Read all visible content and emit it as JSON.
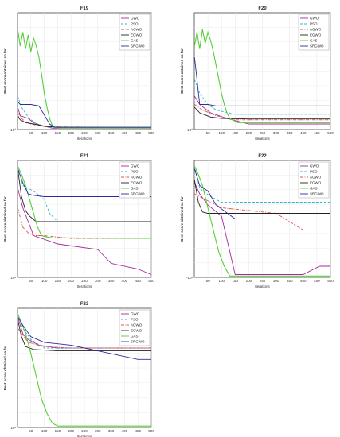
{
  "figure": {
    "panels": [
      "F19",
      "F20",
      "F21",
      "F22",
      "F23"
    ]
  },
  "chart_data": [
    {
      "type": "line",
      "title": "F19",
      "xlabel": "Iterations",
      "ylabel": "Best score obtained so far",
      "yscale": "log",
      "xlim": [
        0,
        500
      ],
      "xticks": [
        50,
        100,
        150,
        200,
        250,
        300,
        350,
        400,
        450,
        500
      ],
      "ytick_labels": [
        "-10°"
      ],
      "grid": true,
      "legend_position": "top-right",
      "series": [
        {
          "name": "GWO",
          "color": "#a52aa0",
          "style": "solid",
          "x": [
            1,
            10,
            40,
            60,
            90,
            130,
            500
          ],
          "y": [
            0.8,
            0.5,
            0.4,
            0.25,
            0.15,
            0.05,
            0.05
          ]
        },
        {
          "name": "PSO",
          "color": "#2fb8c8",
          "style": "dashed",
          "x": [
            1,
            15,
            40,
            70,
            120,
            500
          ],
          "y": [
            1.2,
            0.8,
            0.45,
            0.2,
            0.08,
            0.06
          ]
        },
        {
          "name": "AGWO",
          "color": "#e05252",
          "style": "dashdot",
          "x": [
            1,
            20,
            50,
            100,
            500
          ],
          "y": [
            0.6,
            0.35,
            0.2,
            0.1,
            0.07
          ]
        },
        {
          "name": "EGWO",
          "color": "#222222",
          "style": "solid",
          "x": [
            1,
            10,
            30,
            60,
            100,
            150,
            500
          ],
          "y": [
            0.5,
            0.35,
            0.25,
            0.2,
            0.12,
            0.08,
            0.08
          ]
        },
        {
          "name": "GAS",
          "color": "#55d036",
          "style": "solid",
          "x": [
            1,
            10,
            20,
            30,
            40,
            50,
            60,
            70,
            80,
            90,
            100,
            110,
            120,
            130,
            140,
            160,
            500
          ],
          "y": [
            3.6,
            3.0,
            3.5,
            2.9,
            3.4,
            2.8,
            3.3,
            3.0,
            2.6,
            2.0,
            1.3,
            0.8,
            0.4,
            0.15,
            0.08,
            0.06,
            0.06
          ]
        },
        {
          "name": "SRGWO",
          "color": "#2c2ca0",
          "style": "solid",
          "x": [
            1,
            10,
            50,
            80,
            120,
            140,
            500
          ],
          "y": [
            1.0,
            0.9,
            0.9,
            0.85,
            0.2,
            0.08,
            0.08
          ]
        }
      ]
    },
    {
      "type": "line",
      "title": "F20",
      "xlabel": "Iterations",
      "ylabel": "Best score obtained so far",
      "yscale": "log",
      "xlim": [
        0,
        500
      ],
      "xticks": [
        50,
        100,
        150,
        200,
        250,
        300,
        350,
        400,
        450,
        500
      ],
      "ytick_labels": [
        "-10°"
      ],
      "grid": true,
      "legend_position": "top-right",
      "series": [
        {
          "name": "GWO",
          "color": "#a52aa0",
          "style": "solid",
          "x": [
            1,
            20,
            60,
            120,
            200,
            500
          ],
          "y": [
            1.2,
            0.9,
            0.6,
            0.4,
            0.2,
            0.2
          ]
        },
        {
          "name": "PSO",
          "color": "#2fb8c8",
          "style": "dashed",
          "x": [
            1,
            20,
            50,
            80,
            150,
            500
          ],
          "y": [
            1.8,
            1.3,
            0.9,
            0.7,
            0.55,
            0.55
          ]
        },
        {
          "name": "AGWO",
          "color": "#e05252",
          "style": "dashdot",
          "x": [
            1,
            30,
            80,
            150,
            500
          ],
          "y": [
            0.9,
            0.7,
            0.5,
            0.35,
            0.35
          ]
        },
        {
          "name": "EGWO",
          "color": "#222222",
          "style": "solid",
          "x": [
            1,
            20,
            60,
            100,
            200,
            500
          ],
          "y": [
            0.8,
            0.6,
            0.45,
            0.4,
            0.38,
            0.38
          ]
        },
        {
          "name": "GAS",
          "color": "#55d036",
          "style": "solid",
          "x": [
            1,
            10,
            20,
            30,
            40,
            50,
            60,
            70,
            80,
            90,
            100,
            110,
            120,
            130,
            160,
            500
          ],
          "y": [
            3.0,
            3.5,
            2.9,
            3.6,
            3.1,
            3.5,
            3.2,
            2.8,
            2.3,
            1.8,
            1.3,
            0.9,
            0.6,
            0.4,
            0.25,
            0.25
          ]
        },
        {
          "name": "SRGWO",
          "color": "#2c2ca0",
          "style": "solid",
          "x": [
            1,
            20,
            50,
            80,
            500
          ],
          "y": [
            2.6,
            0.9,
            0.9,
            0.85,
            0.85
          ]
        }
      ]
    },
    {
      "type": "line",
      "title": "F21",
      "xlabel": "Iterations",
      "ylabel": "Best score obtained so far",
      "yscale": "log",
      "xlim": [
        0,
        500
      ],
      "xticks": [
        50,
        100,
        150,
        200,
        250,
        300,
        350,
        400,
        450,
        500
      ],
      "ytick_labels": [
        "-10¹"
      ],
      "grid": true,
      "legend_position": "top-right",
      "series": [
        {
          "name": "GWO",
          "color": "#a52aa0",
          "style": "solid",
          "x": [
            1,
            20,
            60,
            150,
            300,
            350,
            450,
            500
          ],
          "y": [
            3.2,
            2.5,
            1.5,
            1.2,
            1.0,
            0.5,
            0.3,
            0.1
          ]
        },
        {
          "name": "PSO",
          "color": "#2fb8c8",
          "style": "dashed",
          "x": [
            1,
            20,
            40,
            60,
            100,
            120,
            150,
            500
          ],
          "y": [
            4.0,
            3.3,
            3.2,
            3.1,
            2.8,
            2.3,
            2.0,
            2.0
          ]
        },
        {
          "name": "AGWO",
          "color": "#e05252",
          "style": "dashdot",
          "x": [
            1,
            20,
            40,
            60,
            100,
            200,
            500
          ],
          "y": [
            2.5,
            1.8,
            1.6,
            1.5,
            1.5,
            1.4,
            1.4
          ]
        },
        {
          "name": "EGWO",
          "color": "#222222",
          "style": "solid",
          "x": [
            1,
            15,
            30,
            45,
            70,
            100,
            500
          ],
          "y": [
            3.9,
            2.9,
            2.4,
            2.2,
            2.0,
            2.0,
            2.0
          ]
        },
        {
          "name": "GAS",
          "color": "#55d036",
          "style": "solid",
          "x": [
            1,
            15,
            30,
            45,
            60,
            75,
            90,
            110,
            130,
            500
          ],
          "y": [
            4.0,
            3.7,
            3.3,
            2.8,
            2.3,
            1.8,
            1.5,
            1.45,
            1.42,
            1.4
          ]
        },
        {
          "name": "SRGWO",
          "color": "#2c2ca0",
          "style": "solid",
          "x": [
            1,
            20,
            40,
            60,
            100,
            500
          ],
          "y": [
            3.9,
            3.4,
            3.0,
            2.95,
            2.9,
            2.9
          ]
        }
      ]
    },
    {
      "type": "line",
      "title": "F22",
      "xlabel": "Iterations",
      "ylabel": "Best score obtained so far",
      "yscale": "log",
      "xlim": [
        0,
        500
      ],
      "xticks": [
        50,
        100,
        150,
        200,
        250,
        300,
        350,
        400,
        450,
        500
      ],
      "ytick_labels": [
        "-10¹"
      ],
      "grid": true,
      "legend_position": "top-right",
      "series": [
        {
          "name": "GWO",
          "color": "#a52aa0",
          "style": "solid",
          "x": [
            1,
            20,
            50,
            100,
            150,
            400,
            460,
            500
          ],
          "y": [
            3.4,
            3.0,
            2.6,
            2.2,
            0.1,
            0.1,
            0.4,
            0.4
          ]
        },
        {
          "name": "PSO",
          "color": "#2fb8c8",
          "style": "dashed",
          "x": [
            1,
            20,
            60,
            100,
            150,
            500
          ],
          "y": [
            4.0,
            3.2,
            2.9,
            2.7,
            2.7,
            2.7
          ]
        },
        {
          "name": "AGWO",
          "color": "#e05252",
          "style": "dashdot",
          "x": [
            1,
            40,
            100,
            200,
            300,
            400,
            500
          ],
          "y": [
            3.0,
            2.8,
            2.5,
            2.4,
            2.3,
            1.7,
            1.7
          ]
        },
        {
          "name": "EGWO",
          "color": "#222222",
          "style": "solid",
          "x": [
            1,
            15,
            30,
            50,
            500
          ],
          "y": [
            3.5,
            2.7,
            2.35,
            2.3,
            2.3
          ]
        },
        {
          "name": "GAS",
          "color": "#55d036",
          "style": "solid",
          "x": [
            1,
            15,
            30,
            45,
            60,
            75,
            90,
            110,
            130,
            500
          ],
          "y": [
            4.0,
            3.7,
            3.3,
            2.7,
            2.1,
            1.5,
            0.9,
            0.4,
            0.05,
            0.05
          ]
        },
        {
          "name": "SRGWO",
          "color": "#2c2ca0",
          "style": "solid",
          "x": [
            1,
            20,
            50,
            80,
            150,
            500
          ],
          "y": [
            3.9,
            3.3,
            3.1,
            2.6,
            2.1,
            2.1
          ]
        }
      ]
    },
    {
      "type": "line",
      "title": "F23",
      "xlabel": "Iterations",
      "ylabel": "Best score obtained so far",
      "yscale": "log",
      "xlim": [
        0,
        500
      ],
      "xticks": [
        50,
        100,
        150,
        200,
        250,
        300,
        350,
        400,
        450,
        500
      ],
      "ytick_labels": [
        "-10¹"
      ],
      "grid": true,
      "legend_position": "top-right",
      "series": [
        {
          "name": "GWO",
          "color": "#a52aa0",
          "style": "solid",
          "x": [
            1,
            20,
            40,
            80,
            150,
            300,
            500
          ],
          "y": [
            3.9,
            3.3,
            3.1,
            2.9,
            2.8,
            2.8,
            2.8
          ]
        },
        {
          "name": "PSO",
          "color": "#2fb8c8",
          "style": "dashed",
          "x": [
            1,
            20,
            50,
            100,
            500
          ],
          "y": [
            4.0,
            3.5,
            3.1,
            2.8,
            2.8
          ]
        },
        {
          "name": "AGWO",
          "color": "#e05252",
          "style": "dashdot",
          "x": [
            1,
            40,
            100,
            200,
            500
          ],
          "y": [
            3.5,
            3.0,
            2.85,
            2.8,
            2.8
          ]
        },
        {
          "name": "EGWO",
          "color": "#222222",
          "style": "solid",
          "x": [
            1,
            15,
            30,
            60,
            150,
            500
          ],
          "y": [
            3.8,
            3.2,
            2.85,
            2.75,
            2.7,
            2.7
          ]
        },
        {
          "name": "GAS",
          "color": "#55d036",
          "style": "solid",
          "x": [
            1,
            15,
            30,
            45,
            60,
            75,
            90,
            110,
            130,
            150,
            500
          ],
          "y": [
            4.0,
            3.7,
            3.3,
            2.8,
            2.2,
            1.6,
            1.0,
            0.5,
            0.15,
            0.05,
            0.05
          ]
        },
        {
          "name": "SRGWO",
          "color": "#2c2ca0",
          "style": "solid",
          "x": [
            1,
            20,
            50,
            100,
            200,
            350,
            450,
            500
          ],
          "y": [
            3.9,
            3.6,
            3.2,
            3.0,
            2.9,
            2.6,
            2.4,
            2.4
          ]
        }
      ]
    }
  ]
}
